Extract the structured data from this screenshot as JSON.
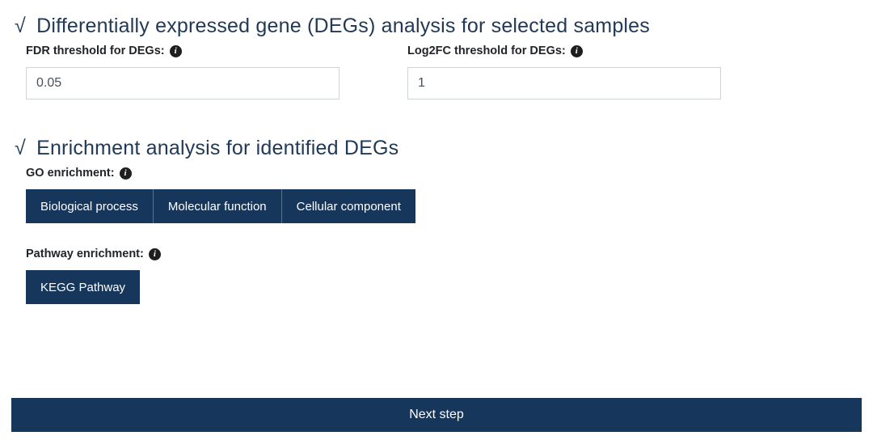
{
  "colors": {
    "primary": "#16365c",
    "text_heading": "#203a57",
    "text_body": "#212529",
    "input_text": "#495057",
    "input_border": "#ced4da",
    "info_bg": "#1e1e1e",
    "btn_divider": "#5a728e",
    "background": "#ffffff"
  },
  "sections": {
    "deg": {
      "check": "√",
      "title": "Differentially expressed gene (DEGs) analysis for selected samples",
      "fields": {
        "fdr": {
          "label": "FDR threshold for DEGs:",
          "value": "0.05"
        },
        "log2fc": {
          "label": "Log2FC threshold for DEGs:",
          "value": "1"
        }
      }
    },
    "enrich": {
      "check": "√",
      "title": "Enrichment analysis for identified DEGs",
      "go": {
        "label": "GO enrichment:",
        "options": {
          "bp": "Biological process",
          "mf": "Molecular function",
          "cc": "Cellular component"
        }
      },
      "pathway": {
        "label": "Pathway enrichment:",
        "options": {
          "kegg": "KEGG Pathway"
        }
      }
    }
  },
  "footer": {
    "next": "Next step"
  },
  "icon_label": "i"
}
